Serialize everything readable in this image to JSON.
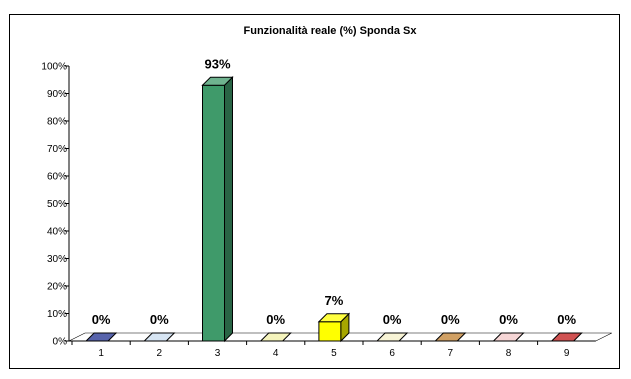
{
  "chart_data": {
    "type": "bar",
    "title": "Funzionalità reale (%) Sponda Sx",
    "xlabel": "",
    "ylabel": "",
    "categories": [
      "1",
      "2",
      "3",
      "4",
      "5",
      "6",
      "7",
      "8",
      "9"
    ],
    "values": [
      0,
      0,
      93,
      0,
      7,
      0,
      0,
      0,
      0
    ],
    "data_labels": [
      "0%",
      "0%",
      "93%",
      "0%",
      "7%",
      "0%",
      "0%",
      "0%",
      "0%"
    ],
    "ylim": [
      0,
      100
    ],
    "yticks": [
      "0%",
      "10%",
      "20%",
      "30%",
      "40%",
      "50%",
      "60%",
      "70%",
      "80%",
      "90%",
      "100%"
    ],
    "grid": false,
    "legend": "none",
    "style": "3d-column",
    "colors": [
      "#1f2f8f",
      "#c9dcef",
      "#3f9a6a",
      "#f2f0a6",
      "#ffff00",
      "#f5f0c8",
      "#c08030",
      "#f3c8c8",
      "#c01818"
    ]
  }
}
